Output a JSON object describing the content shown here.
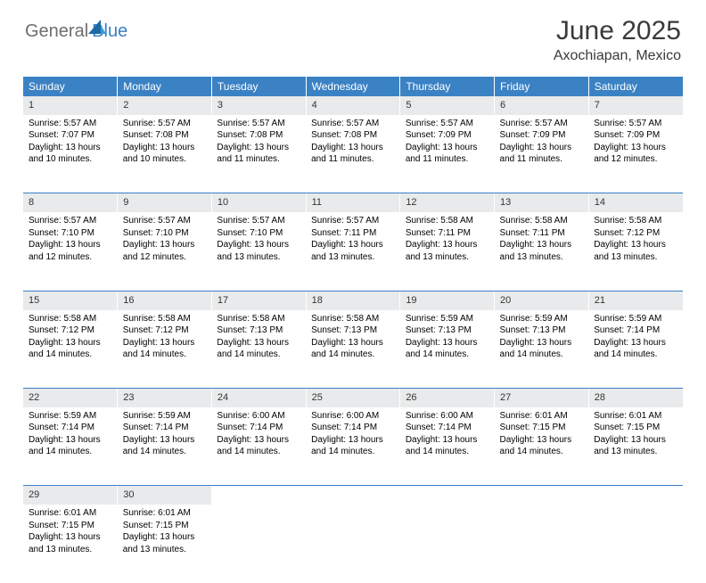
{
  "logo": {
    "part1": "General",
    "part2": "Blue"
  },
  "header": {
    "month": "June 2025",
    "location": "Axochiapan, Mexico"
  },
  "colors": {
    "header_bg": "#3b82c4",
    "header_text": "#ffffff",
    "daynum_bg": "#e9eaeb",
    "divider": "#3b7fc4",
    "logo_gray": "#6d6e71",
    "logo_blue": "#3b7fc4"
  },
  "weekdays": [
    "Sunday",
    "Monday",
    "Tuesday",
    "Wednesday",
    "Thursday",
    "Friday",
    "Saturday"
  ],
  "weeks": [
    [
      {
        "day": "1",
        "sunrise": "Sunrise: 5:57 AM",
        "sunset": "Sunset: 7:07 PM",
        "daylight": "Daylight: 13 hours and 10 minutes."
      },
      {
        "day": "2",
        "sunrise": "Sunrise: 5:57 AM",
        "sunset": "Sunset: 7:08 PM",
        "daylight": "Daylight: 13 hours and 10 minutes."
      },
      {
        "day": "3",
        "sunrise": "Sunrise: 5:57 AM",
        "sunset": "Sunset: 7:08 PM",
        "daylight": "Daylight: 13 hours and 11 minutes."
      },
      {
        "day": "4",
        "sunrise": "Sunrise: 5:57 AM",
        "sunset": "Sunset: 7:08 PM",
        "daylight": "Daylight: 13 hours and 11 minutes."
      },
      {
        "day": "5",
        "sunrise": "Sunrise: 5:57 AM",
        "sunset": "Sunset: 7:09 PM",
        "daylight": "Daylight: 13 hours and 11 minutes."
      },
      {
        "day": "6",
        "sunrise": "Sunrise: 5:57 AM",
        "sunset": "Sunset: 7:09 PM",
        "daylight": "Daylight: 13 hours and 11 minutes."
      },
      {
        "day": "7",
        "sunrise": "Sunrise: 5:57 AM",
        "sunset": "Sunset: 7:09 PM",
        "daylight": "Daylight: 13 hours and 12 minutes."
      }
    ],
    [
      {
        "day": "8",
        "sunrise": "Sunrise: 5:57 AM",
        "sunset": "Sunset: 7:10 PM",
        "daylight": "Daylight: 13 hours and 12 minutes."
      },
      {
        "day": "9",
        "sunrise": "Sunrise: 5:57 AM",
        "sunset": "Sunset: 7:10 PM",
        "daylight": "Daylight: 13 hours and 12 minutes."
      },
      {
        "day": "10",
        "sunrise": "Sunrise: 5:57 AM",
        "sunset": "Sunset: 7:10 PM",
        "daylight": "Daylight: 13 hours and 13 minutes."
      },
      {
        "day": "11",
        "sunrise": "Sunrise: 5:57 AM",
        "sunset": "Sunset: 7:11 PM",
        "daylight": "Daylight: 13 hours and 13 minutes."
      },
      {
        "day": "12",
        "sunrise": "Sunrise: 5:58 AM",
        "sunset": "Sunset: 7:11 PM",
        "daylight": "Daylight: 13 hours and 13 minutes."
      },
      {
        "day": "13",
        "sunrise": "Sunrise: 5:58 AM",
        "sunset": "Sunset: 7:11 PM",
        "daylight": "Daylight: 13 hours and 13 minutes."
      },
      {
        "day": "14",
        "sunrise": "Sunrise: 5:58 AM",
        "sunset": "Sunset: 7:12 PM",
        "daylight": "Daylight: 13 hours and 13 minutes."
      }
    ],
    [
      {
        "day": "15",
        "sunrise": "Sunrise: 5:58 AM",
        "sunset": "Sunset: 7:12 PM",
        "daylight": "Daylight: 13 hours and 14 minutes."
      },
      {
        "day": "16",
        "sunrise": "Sunrise: 5:58 AM",
        "sunset": "Sunset: 7:12 PM",
        "daylight": "Daylight: 13 hours and 14 minutes."
      },
      {
        "day": "17",
        "sunrise": "Sunrise: 5:58 AM",
        "sunset": "Sunset: 7:13 PM",
        "daylight": "Daylight: 13 hours and 14 minutes."
      },
      {
        "day": "18",
        "sunrise": "Sunrise: 5:58 AM",
        "sunset": "Sunset: 7:13 PM",
        "daylight": "Daylight: 13 hours and 14 minutes."
      },
      {
        "day": "19",
        "sunrise": "Sunrise: 5:59 AM",
        "sunset": "Sunset: 7:13 PM",
        "daylight": "Daylight: 13 hours and 14 minutes."
      },
      {
        "day": "20",
        "sunrise": "Sunrise: 5:59 AM",
        "sunset": "Sunset: 7:13 PM",
        "daylight": "Daylight: 13 hours and 14 minutes."
      },
      {
        "day": "21",
        "sunrise": "Sunrise: 5:59 AM",
        "sunset": "Sunset: 7:14 PM",
        "daylight": "Daylight: 13 hours and 14 minutes."
      }
    ],
    [
      {
        "day": "22",
        "sunrise": "Sunrise: 5:59 AM",
        "sunset": "Sunset: 7:14 PM",
        "daylight": "Daylight: 13 hours and 14 minutes."
      },
      {
        "day": "23",
        "sunrise": "Sunrise: 5:59 AM",
        "sunset": "Sunset: 7:14 PM",
        "daylight": "Daylight: 13 hours and 14 minutes."
      },
      {
        "day": "24",
        "sunrise": "Sunrise: 6:00 AM",
        "sunset": "Sunset: 7:14 PM",
        "daylight": "Daylight: 13 hours and 14 minutes."
      },
      {
        "day": "25",
        "sunrise": "Sunrise: 6:00 AM",
        "sunset": "Sunset: 7:14 PM",
        "daylight": "Daylight: 13 hours and 14 minutes."
      },
      {
        "day": "26",
        "sunrise": "Sunrise: 6:00 AM",
        "sunset": "Sunset: 7:14 PM",
        "daylight": "Daylight: 13 hours and 14 minutes."
      },
      {
        "day": "27",
        "sunrise": "Sunrise: 6:01 AM",
        "sunset": "Sunset: 7:15 PM",
        "daylight": "Daylight: 13 hours and 14 minutes."
      },
      {
        "day": "28",
        "sunrise": "Sunrise: 6:01 AM",
        "sunset": "Sunset: 7:15 PM",
        "daylight": "Daylight: 13 hours and 13 minutes."
      }
    ],
    [
      {
        "day": "29",
        "sunrise": "Sunrise: 6:01 AM",
        "sunset": "Sunset: 7:15 PM",
        "daylight": "Daylight: 13 hours and 13 minutes."
      },
      {
        "day": "30",
        "sunrise": "Sunrise: 6:01 AM",
        "sunset": "Sunset: 7:15 PM",
        "daylight": "Daylight: 13 hours and 13 minutes."
      },
      null,
      null,
      null,
      null,
      null
    ]
  ]
}
